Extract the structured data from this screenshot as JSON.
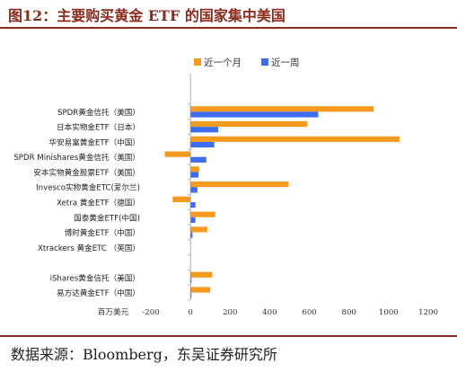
{
  "figure": {
    "title": "图12：主要购买黄金 ETF 的国家集中美国",
    "source": "数据来源：Bloomberg，东吴证券研究所"
  },
  "chart_data": {
    "type": "bar",
    "orientation": "horizontal",
    "categories": [
      "SPDR黄金信托（美国）",
      "日本实物金ETF（日本）",
      "华安易富黄金ETF（中国）",
      "SPDR Minishares黄金信托（美国）",
      "安本实物黄金股票ETF（美国）",
      "Invesco实物黄金ETC(爱尔兰)",
      "Xetra 黄金ETF（德国）",
      "国泰黄金ETF(中国)",
      "博时黄金ETF（中国）",
      "Xtrackers 黄金ETC （英国）",
      "",
      "iShares黄金信托（美国）",
      "易方达黄金ETF（中国）"
    ],
    "series": [
      {
        "name": "近一个月",
        "color": "#f39a1f",
        "values": [
          925,
          590,
          1055,
          -130,
          45,
          495,
          -90,
          125,
          85,
          0,
          null,
          110,
          100
        ]
      },
      {
        "name": "近一周",
        "color": "#3c6df0",
        "values": [
          645,
          140,
          120,
          80,
          40,
          35,
          25,
          25,
          10,
          0,
          null,
          5,
          5
        ]
      }
    ],
    "xlim": [
      -200,
      1200
    ],
    "xticks": [
      -200,
      0,
      200,
      400,
      600,
      800,
      1000,
      1200
    ],
    "xlabel": "百万美元",
    "legend_position": "top",
    "grid": false
  }
}
